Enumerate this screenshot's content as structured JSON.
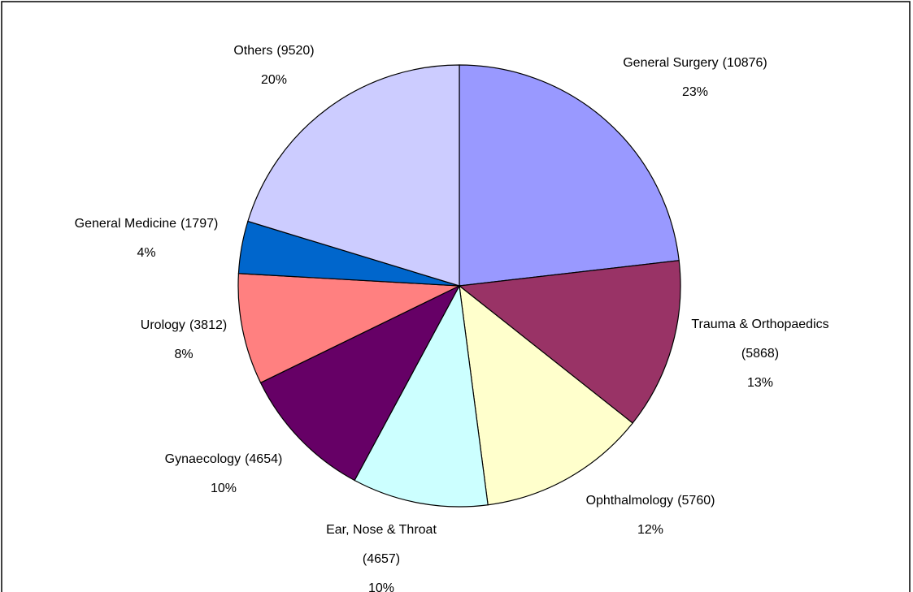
{
  "chart_data": {
    "type": "pie",
    "categories": [
      "General Surgery",
      "Trauma & Orthopaedics",
      "Ophthalmology",
      "Ear, Nose & Throat",
      "Gynaecology",
      "Urology",
      "General Medicine",
      "Others"
    ],
    "values": [
      10876,
      5868,
      5760,
      4657,
      4654,
      3812,
      1797,
      9520
    ],
    "count_labels": [
      "(10876)",
      "(5868)",
      "(5760)",
      "(4657)",
      "(4654)",
      "(3812)",
      "(1797)",
      "(9520)"
    ],
    "value_labels": [
      "23%",
      "13%",
      "12%",
      "10%",
      "10%",
      "8%",
      "4%",
      "20%"
    ],
    "colors": [
      "#9999ff",
      "#993366",
      "#ffffcc",
      "#ccffff",
      "#660066",
      "#ff8080",
      "#0066cc",
      "#ccccff"
    ]
  }
}
